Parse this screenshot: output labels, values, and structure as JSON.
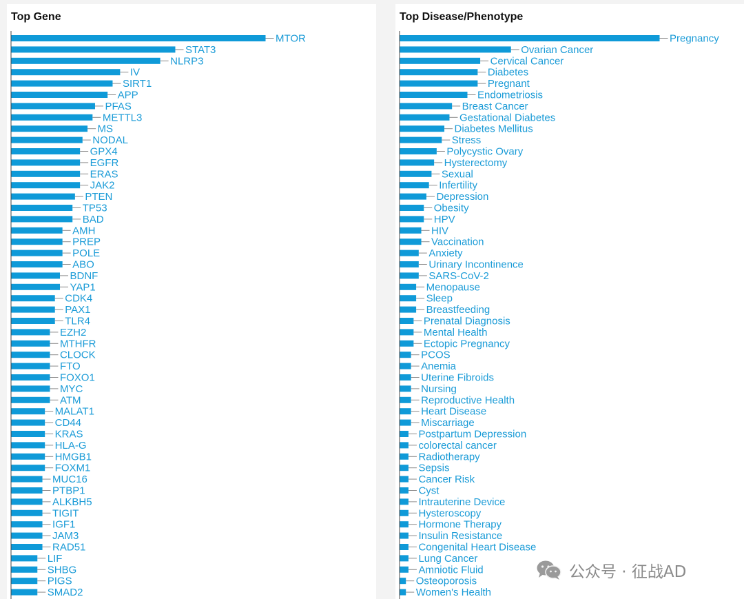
{
  "chart_data": [
    {
      "type": "bar",
      "orientation": "horizontal",
      "title": "Top Gene",
      "bar_color": "#0f9ad8",
      "label_color": "#1a9bd7",
      "categories": [
        "MTOR",
        "STAT3",
        "NLRP3",
        "IV",
        "SIRT1",
        "APP",
        "PFAS",
        "METTL3",
        "MS",
        "NODAL",
        "GPX4",
        "EGFR",
        "ERAS",
        "JAK2",
        "PTEN",
        "TP53",
        "BAD",
        "AMH",
        "PREP",
        "POLE",
        "ABO",
        "BDNF",
        "YAP1",
        "CDK4",
        "PAX1",
        "TLR4",
        "EZH2",
        "MTHFR",
        "CLOCK",
        "FTO",
        "FOXO1",
        "MYC",
        "ATM",
        "MALAT1",
        "CD44",
        "KRAS",
        "HLA-G",
        "HMGB1",
        "FOXM1",
        "MUC16",
        "PTBP1",
        "ALKBH5",
        "TIGIT",
        "IGF1",
        "JAM3",
        "RAD51",
        "LIF",
        "SHBG",
        "PIGS",
        "SMAD2"
      ],
      "values": [
        100,
        64,
        58,
        42,
        39,
        37,
        32,
        31,
        29,
        27,
        26,
        26,
        26,
        26,
        24,
        23,
        23,
        19,
        19,
        19,
        19,
        18,
        18,
        16,
        16,
        16,
        14,
        14,
        14,
        14,
        14,
        14,
        14,
        12,
        12,
        12,
        12,
        12,
        12,
        11,
        11,
        11,
        11,
        11,
        11,
        11,
        9,
        9,
        9,
        9
      ]
    },
    {
      "type": "bar",
      "orientation": "horizontal",
      "title": "Top Disease/Phenotype",
      "bar_color": "#0f9ad8",
      "label_color": "#1a9bd7",
      "categories": [
        "Pregnancy",
        "Ovarian Cancer",
        "Cervical Cancer",
        "Diabetes",
        "Pregnant",
        "Endometriosis",
        "Breast Cancer",
        "Gestational Diabetes",
        "Diabetes Mellitus",
        "Stress",
        "Polycystic Ovary",
        "Hysterectomy",
        "Sexual",
        "Infertility",
        "Depression",
        "Obesity",
        "HPV",
        "HIV",
        "Vaccination",
        "Anxiety",
        "Urinary Incontinence",
        "SARS-CoV-2",
        "Menopause",
        "Sleep",
        "Breastfeeding",
        "Prenatal Diagnosis",
        "Mental Health",
        "Ectopic Pregnancy",
        "PCOS",
        "Anemia",
        "Uterine Fibroids",
        "Nursing",
        "Reproductive Health",
        "Heart Disease",
        "Miscarriage",
        "Postpartum Depression",
        "colorectal cancer",
        "Radiotherapy",
        "Sepsis",
        "Cancer Risk",
        "Cyst",
        "Intrauterine Device",
        "Hysteroscopy",
        "Hormone Therapy",
        "Insulin Resistance",
        "Congenital Heart Disease",
        "Lung Cancer",
        "Amniotic Fluid",
        "Osteoporosis",
        "Women's Health"
      ],
      "values": [
        100,
        42,
        30,
        29,
        29,
        25,
        19,
        18,
        16,
        15,
        13,
        12,
        11,
        10,
        9,
        8,
        8,
        7,
        7,
        6,
        6,
        6,
        5,
        5,
        5,
        4,
        4,
        4,
        3,
        3,
        3,
        3,
        3,
        3,
        3,
        2,
        2,
        2,
        2,
        2,
        2,
        2,
        2,
        2,
        2,
        2,
        2,
        2,
        1,
        1
      ]
    }
  ],
  "watermark": {
    "icon": "wechat-icon",
    "text": "公众号 · 征战AD"
  }
}
